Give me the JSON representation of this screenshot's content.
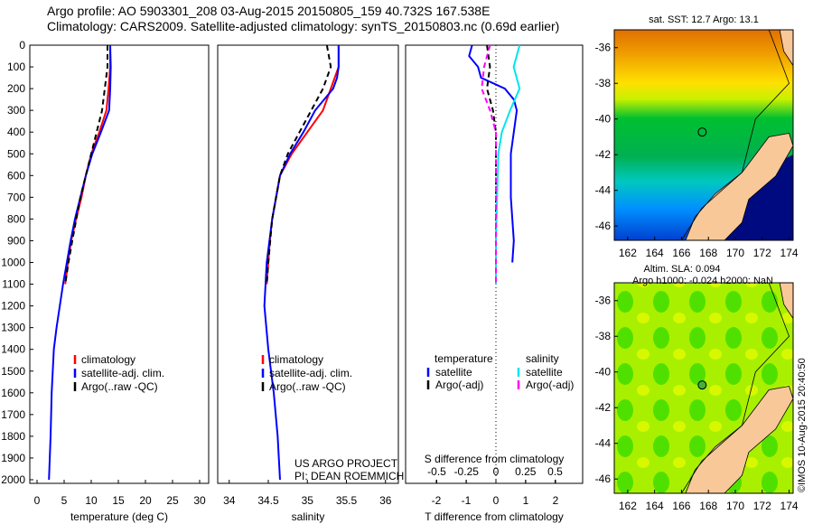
{
  "header": {
    "line1": "Argo profile: AO 5903301_208 03-Aug-2015 20150805_159 40.732S 167.538E",
    "line2": "Climatology: CARS2009. Satellite-adjusted climatology: synTS_20150803.nc (0.69d earlier)"
  },
  "credits": {
    "project": "US ARGO PROJECT",
    "pi": "PI: DEAN ROEMMICH",
    "imos": "©IMOS 10-Aug-2015 20:40:50"
  },
  "colors": {
    "climatology": "#ff0000",
    "satellite": "#0000ff",
    "argo": "#000000",
    "sal_sat": "#00e5ee",
    "sal_argo": "#ff00ff"
  },
  "chart_data": [
    {
      "type": "line",
      "xlabel": "temperature (deg C)",
      "xlim": [
        -2,
        32
      ],
      "ylim": [
        0,
        2050
      ],
      "xticks": [
        "0",
        "5",
        "10",
        "15",
        "20",
        "25",
        "30"
      ],
      "xtickvals": [
        0,
        5,
        10,
        15,
        20,
        25,
        30
      ],
      "yticks": [
        "0",
        "100",
        "200",
        "300",
        "400",
        "500",
        "600",
        "700",
        "800",
        "900",
        "1000",
        "1100",
        "1200",
        "1300",
        "1400",
        "1500",
        "1600",
        "1700",
        "1800",
        "1900",
        "2000"
      ],
      "legend": [
        "climatology",
        "satellite-adj. clim.",
        "Argo(..raw -QC)"
      ],
      "series": [
        {
          "name": "climatology",
          "p": [
            0,
            100,
            200,
            300,
            400,
            500,
            600,
            700,
            800,
            900,
            1000,
            1100
          ],
          "v": [
            13.5,
            13.5,
            13.2,
            12.8,
            11.5,
            10,
            9,
            8.2,
            7.2,
            6.3,
            5.7,
            5.2
          ]
        },
        {
          "name": "satellite-adj. clim.",
          "p": [
            0,
            100,
            200,
            300,
            400,
            500,
            600,
            700,
            800,
            900,
            1000,
            1100,
            1200,
            1300,
            1400,
            1500,
            1600,
            1800,
            2000
          ],
          "v": [
            13.5,
            13.6,
            13.5,
            13.3,
            11.8,
            10.2,
            9,
            8,
            7,
            6.2,
            5.5,
            4.8,
            4.2,
            3.6,
            3.1,
            2.9,
            2.7,
            2.5,
            2.2
          ]
        },
        {
          "name": "Argo(..raw -QC)",
          "p": [
            0,
            100,
            200,
            300,
            400,
            500,
            700,
            900,
            1000,
            1100
          ],
          "v": [
            13,
            13,
            12.5,
            12,
            11,
            10,
            8,
            6.5,
            5.8,
            5.2
          ]
        }
      ]
    },
    {
      "type": "line",
      "xlabel": "salinity",
      "xlim": [
        33.8,
        36.1
      ],
      "ylim": [
        0,
        2050
      ],
      "xticks": [
        "34",
        "34.5",
        "35",
        "35.5",
        "36"
      ],
      "xtickvals": [
        34,
        34.5,
        35,
        35.5,
        36
      ],
      "legend": [
        "climatology",
        "satellite-adj. clim.",
        "Argo(..raw -QC)"
      ],
      "series": [
        {
          "name": "climatology",
          "p": [
            0,
            100,
            200,
            300,
            400,
            500,
            600,
            700,
            800,
            900,
            1000,
            1100
          ],
          "v": [
            35.4,
            35.4,
            35.3,
            35.2,
            35.0,
            34.8,
            34.65,
            34.6,
            34.55,
            34.52,
            34.5,
            34.48
          ]
        },
        {
          "name": "satellite-adj. clim.",
          "p": [
            0,
            100,
            150,
            200,
            300,
            400,
            500,
            600,
            800,
            1000,
            1200,
            1400,
            1600,
            1800,
            2000
          ],
          "v": [
            35.4,
            35.4,
            35.38,
            35.33,
            35.1,
            34.95,
            34.78,
            34.65,
            34.55,
            34.48,
            34.45,
            34.5,
            34.57,
            34.62,
            34.65
          ]
        },
        {
          "name": "Argo(..raw -QC)",
          "p": [
            0,
            100,
            200,
            300,
            400,
            500,
            600,
            800,
            1000,
            1100
          ],
          "v": [
            35.25,
            35.3,
            35.2,
            35.05,
            34.9,
            34.75,
            34.65,
            34.55,
            34.5,
            34.48
          ]
        }
      ]
    },
    {
      "type": "line",
      "xlabel": "T difference from climatology",
      "xlabel2": "S difference from climatology",
      "xlim": [
        -3,
        3
      ],
      "xticks": [
        "-2",
        "-1",
        "0",
        "1",
        "2"
      ],
      "xtickvals": [
        -2,
        -1,
        0,
        1,
        2
      ],
      "xticks2": [
        "-0.5",
        "-0.25",
        "0",
        "0.25",
        "0.5"
      ],
      "xtickvals2": [
        -0.5,
        -0.25,
        0,
        0.25,
        0.5
      ],
      "legend_t": {
        "title": "temperature",
        "items": [
          "satellite",
          "Argo(-adj)"
        ]
      },
      "legend_s": {
        "title": "salinity",
        "items": [
          "satellite",
          "Argo(-adj)"
        ]
      },
      "series": [
        {
          "name": "T satellite",
          "axis": "T",
          "p": [
            0,
            50,
            100,
            150,
            200,
            250,
            300,
            400,
            500,
            600,
            700,
            800,
            900,
            1000
          ],
          "v": [
            -0.8,
            -0.9,
            -0.6,
            -0.5,
            0.3,
            0.6,
            0.7,
            0.6,
            0.5,
            0.5,
            0.5,
            0.55,
            0.6,
            0.55
          ]
        },
        {
          "name": "T Argo(-adj)",
          "axis": "T",
          "p": [
            0,
            100,
            200,
            300,
            400,
            500,
            700,
            900,
            1000,
            1100
          ],
          "v": [
            -0.3,
            -0.2,
            -0.3,
            -0.1,
            0,
            0,
            0,
            0,
            0,
            0
          ]
        },
        {
          "name": "S satellite",
          "axis": "S",
          "p": [
            0,
            100,
            200,
            300,
            400,
            500,
            700,
            900,
            1100
          ],
          "v": [
            0.2,
            0.15,
            0.2,
            0.12,
            0.05,
            0.02,
            0.01,
            0,
            0
          ]
        },
        {
          "name": "S Argo(-adj)",
          "axis": "S",
          "p": [
            0,
            100,
            200,
            300,
            400,
            600,
            900,
            1100
          ],
          "v": [
            -0.05,
            -0.1,
            -0.12,
            -0.05,
            0,
            0,
            0,
            0
          ]
        }
      ]
    },
    {
      "type": "heatmap",
      "title": "sat. SST: 12.7 Argo: 13.1",
      "lon": [
        161,
        174.3
      ],
      "lat": [
        -46.8,
        -35
      ],
      "xticks": [
        "162",
        "164",
        "166",
        "168",
        "170",
        "172",
        "174"
      ],
      "yticks": [
        "-36",
        "-38",
        "-40",
        "-42",
        "-44",
        "-46"
      ],
      "marker": [
        167.538,
        -40.732
      ]
    },
    {
      "type": "heatmap",
      "title": "Altim. SLA: 0.094",
      "title2": "Argo h1000: -0.024 h2000: NaN",
      "lon": [
        161,
        174.3
      ],
      "lat": [
        -46.8,
        -35
      ],
      "xticks": [
        "162",
        "164",
        "166",
        "168",
        "170",
        "172",
        "174"
      ],
      "yticks": [
        "-36",
        "-38",
        "-40",
        "-42",
        "-44",
        "-46"
      ],
      "marker": [
        167.538,
        -40.732
      ]
    }
  ]
}
